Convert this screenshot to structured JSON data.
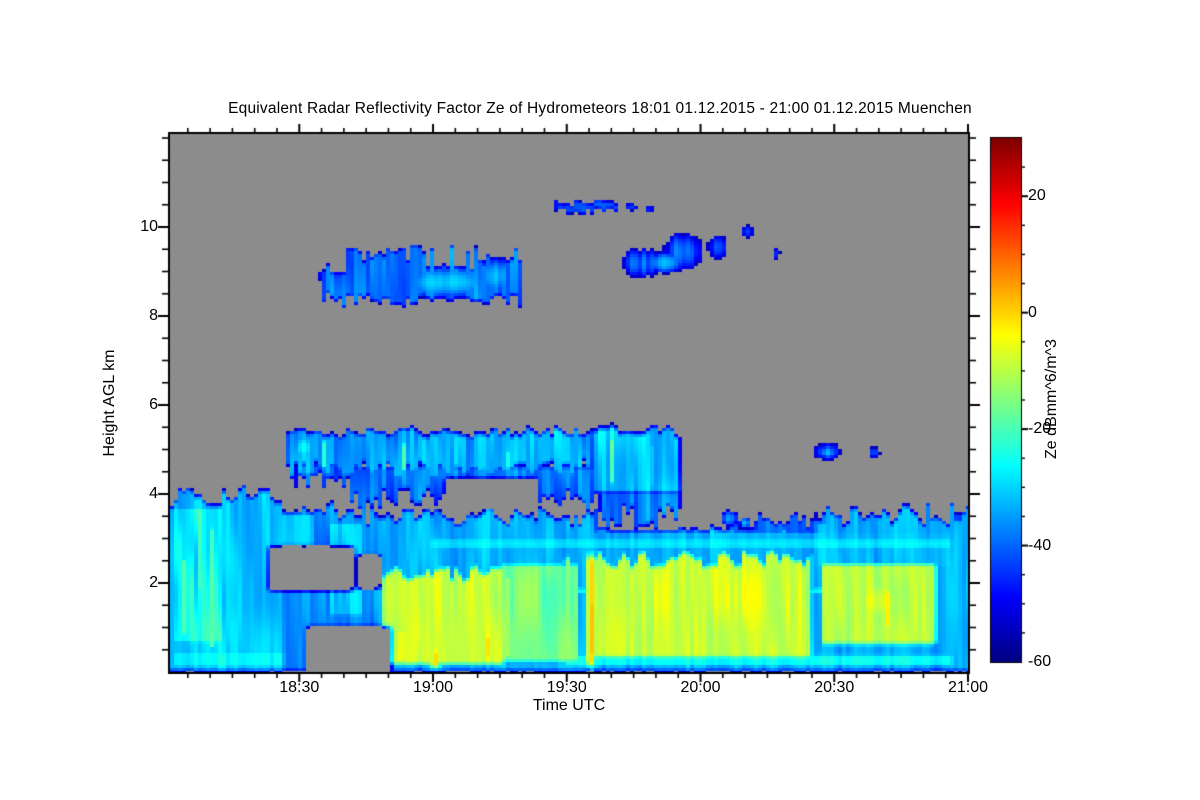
{
  "chart_data": {
    "type": "heatmap",
    "title": "Equivalent Radar Reflectivity Factor Ze of Hydrometeors   18:01 01.12.2015 - 21:00 01.12.2015 Muenchen",
    "xlabel": "Time UTC",
    "ylabel": "Height AGL km",
    "colorbar_label": "Ze dBmm^6/m^3",
    "time_start": "18:01",
    "time_end": "21:00",
    "date": "01.12.2015",
    "location": "Muenchen",
    "duration_min": 179,
    "x_ticks": [
      "18:30",
      "19:00",
      "19:30",
      "20:00",
      "20:30",
      "21:00"
    ],
    "x_minor_tick_min": 5,
    "y_range_km": [
      0,
      12.09
    ],
    "y_ticks": [
      2,
      4,
      6,
      8,
      10
    ],
    "y_minor_tick_km": 0.5,
    "colorbar_range": [
      -60,
      30
    ],
    "colorbar_ticks": [
      20,
      0,
      -20,
      -40,
      -60
    ],
    "colorbar_minor_tick": 5,
    "colormap": "jet",
    "no_data_color": "#8c8c8c",
    "value_units": "dBmm^6/m^3",
    "features": {
      "precip_envelope": [
        {
          "k": "b",
          "t": [
            -2,
            25.5
          ],
          "h": [
            0,
            3.95
          ],
          "v": -31,
          "a": 7,
          "ft": 0.3
        },
        {
          "k": "b",
          "t": [
            24,
            47
          ],
          "h": [
            0,
            3.6
          ],
          "v": -37,
          "a": 7,
          "ft": 0.35
        },
        {
          "k": "b",
          "t": [
            46,
            96
          ],
          "h": [
            0,
            3.55
          ],
          "v": -33,
          "a": 6,
          "ft": 0.3
        },
        {
          "k": "b",
          "t": [
            95,
            146
          ],
          "h": [
            0,
            3.1
          ],
          "v": -33,
          "a": 6,
          "ft": 0.3
        },
        {
          "k": "b",
          "t": [
            145,
            181
          ],
          "h": [
            0,
            3.55
          ],
          "v": -34,
          "a": 6,
          "ft": 0.3
        }
      ],
      "precip_detail": [
        {
          "k": "b",
          "t": [
            0.5,
            12
          ],
          "h": [
            0.6,
            3.75
          ],
          "v": -25,
          "a": 9
        },
        {
          "k": "s",
          "t": 3,
          "w": 1.2,
          "h": [
            0.8,
            2.6
          ],
          "v": -17,
          "a": 4
        },
        {
          "k": "s",
          "t": 6.5,
          "w": 1.0,
          "h": [
            1.8,
            3.7
          ],
          "v": -18,
          "a": 4
        },
        {
          "k": "s",
          "t": 9.5,
          "w": 0.9,
          "h": [
            0.5,
            3.3
          ],
          "v": -19,
          "a": 4
        },
        {
          "k": "b",
          "t": [
            0,
            26
          ],
          "h": [
            0.05,
            0.5
          ],
          "v": -27,
          "a": 5
        },
        {
          "k": "b",
          "t": [
            19,
            26
          ],
          "h": [
            0.8,
            3.0
          ],
          "v": -43,
          "a": 5
        },
        {
          "k": "b",
          "t": [
            23,
            33
          ],
          "h": [
            2.8,
            3.6
          ],
          "v": -31,
          "a": 6
        },
        {
          "k": "b",
          "t": [
            35,
            44
          ],
          "h": [
            1.2,
            3.4
          ],
          "v": -31,
          "a": 8
        },
        {
          "k": "b",
          "t": [
            43.5,
            47.5
          ],
          "h": [
            0,
            2.7
          ],
          "v": -46,
          "a": 5
        },
        {
          "k": "b",
          "t": [
            47.5,
            75
          ],
          "h": [
            0.15,
            2.25
          ],
          "v": -8,
          "a": 5,
          "ft": 0.2
        },
        {
          "k": "s",
          "t": 52,
          "w": 1.6,
          "h": [
            0.2,
            1.0
          ],
          "v": 0,
          "a": 3
        },
        {
          "k": "s",
          "t": 59.5,
          "w": 2.0,
          "h": [
            0.1,
            0.55
          ],
          "v": -1,
          "a": 3
        },
        {
          "k": "s",
          "t": 71.5,
          "w": 1.4,
          "h": [
            0.25,
            0.9
          ],
          "v": -2,
          "a": 3
        },
        {
          "k": "b",
          "t": [
            56,
            72
          ],
          "h": [
            2.15,
            2.65
          ],
          "v": -44,
          "a": 4
        },
        {
          "k": "b",
          "t": [
            74,
            92
          ],
          "h": [
            0.2,
            2.45
          ],
          "v": -16,
          "a": 7
        },
        {
          "k": "s",
          "t": 76,
          "w": 0.8,
          "h": [
            0.3,
            2.2
          ],
          "v": -8,
          "a": 3
        },
        {
          "k": "s",
          "t": 84.5,
          "w": 0.7,
          "h": [
            0.4,
            2.3
          ],
          "v": -9,
          "a": 3
        },
        {
          "k": "s",
          "t": 89,
          "w": 0.9,
          "h": [
            0.4,
            2.6
          ],
          "v": -7,
          "a": 3
        },
        {
          "k": "s",
          "t": 94.3,
          "w": 1.05,
          "h": [
            0.15,
            2.6
          ],
          "v": 6,
          "a": 3
        },
        {
          "k": "s",
          "t": 94.3,
          "w": 0.75,
          "h": [
            0.35,
            1.6
          ],
          "v": 14,
          "a": 2
        },
        {
          "k": "b",
          "t": [
            95,
            144
          ],
          "h": [
            0.3,
            2.55
          ],
          "v": -8,
          "a": 6,
          "ft": 0.25
        },
        {
          "k": "s",
          "t": 103.5,
          "w": 0.9,
          "h": [
            0.3,
            2.3
          ],
          "v": -5,
          "a": 3
        },
        {
          "k": "s",
          "t": 112,
          "w": 0.9,
          "h": [
            0.4,
            2.5
          ],
          "v": -5,
          "a": 3
        },
        {
          "k": "s",
          "t": 130.8,
          "w": 0.9,
          "h": [
            0.9,
            2.3
          ],
          "v": -1,
          "a": 3
        },
        {
          "k": "s",
          "t": 130.8,
          "w": 1.3,
          "h": [
            0.4,
            2.65
          ],
          "v": -6,
          "a": 3
        },
        {
          "k": "b",
          "t": [
            142,
            150.5
          ],
          "h": [
            0.55,
            1.4
          ],
          "v": -47,
          "a": 5
        },
        {
          "k": "b",
          "t": [
            146,
            172
          ],
          "h": [
            0.6,
            2.45
          ],
          "v": -10,
          "a": 5
        },
        {
          "k": "o",
          "t": 159,
          "hc": 1.6,
          "rt": 9,
          "rh": 0.75,
          "v": -6,
          "a": 4
        },
        {
          "k": "s",
          "t": 161,
          "w": 1.4,
          "h": [
            1.0,
            1.9
          ],
          "v": -3,
          "a": 3
        },
        {
          "k": "b",
          "t": [
            174.5,
            181
          ],
          "h": [
            0,
            3.6
          ],
          "v": -45,
          "a": 8
        },
        {
          "k": "b",
          "t": [
            46,
            176
          ],
          "h": [
            2.3,
            3.2
          ],
          "v": -33,
          "a": 6
        },
        {
          "k": "b",
          "t": [
            58,
            176
          ],
          "h": [
            2.72,
            3.05
          ],
          "v": -28,
          "a": 4
        },
        {
          "k": "b",
          "t": [
            88,
            176
          ],
          "h": [
            0.08,
            0.45
          ],
          "v": -26,
          "a": 4
        },
        {
          "k": "b",
          "t": [
            88,
            172
          ],
          "h": [
            1.76,
            1.9
          ],
          "v": -16,
          "a": 3
        },
        {
          "k": "o",
          "t": 125.5,
          "hc": 3.45,
          "rt": 2.5,
          "rh": 0.22,
          "v": -38,
          "a": 5
        },
        {
          "k": "o",
          "t": 129,
          "hc": 3.35,
          "rt": 1.5,
          "rh": 0.15,
          "v": -33,
          "a": 4
        },
        {
          "k": "b",
          "t": [
            131,
            150
          ],
          "h": [
            2.95,
            3.45
          ],
          "v": -40,
          "a": 8,
          "ft": 0.25
        },
        {
          "k": "b",
          "t": [
            113,
            131
          ],
          "h": [
            2.85,
            3.2
          ],
          "v": -41,
          "a": 7,
          "ft": 0.25
        }
      ],
      "midlevel_band": [
        {
          "k": "b",
          "t": [
            26,
            95
          ],
          "h": [
            4.55,
            5.42
          ],
          "v": -34,
          "a": 9,
          "ft": 0.12,
          "fb": 0.3
        },
        {
          "k": "s",
          "t": 34.5,
          "w": 1.5,
          "h": [
            4.55,
            5.25
          ],
          "v": -21,
          "a": 4
        },
        {
          "k": "s",
          "t": 52.5,
          "w": 1.2,
          "h": [
            4.5,
            5.2
          ],
          "v": -22,
          "a": 4
        },
        {
          "k": "s",
          "t": 76,
          "w": 1.0,
          "h": [
            4.55,
            5.05
          ],
          "v": -24,
          "a": 4
        },
        {
          "k": "o",
          "t": 30,
          "hc": 5.05,
          "rt": 3,
          "rh": 0.35,
          "v": -27,
          "a": 5
        },
        {
          "k": "b",
          "t": [
            95,
            114.5
          ],
          "h": [
            4.0,
            5.45
          ],
          "v": -30,
          "a": 8,
          "ft": 0.15
        },
        {
          "k": "s",
          "t": 99,
          "w": 1.6,
          "h": [
            4.2,
            5.3
          ],
          "v": -19,
          "a": 4
        },
        {
          "k": "s",
          "t": 108.5,
          "w": 1.2,
          "h": [
            4.1,
            5.2
          ],
          "v": -23,
          "a": 4
        },
        {
          "k": "b",
          "t": [
            40,
            96
          ],
          "h": [
            3.9,
            4.65
          ],
          "v": -40,
          "a": 11,
          "fb": 0.35
        },
        {
          "k": "b",
          "t": [
            96,
            114.5
          ],
          "h": [
            3.45,
            4.1
          ],
          "v": -37,
          "a": 9,
          "fb": 0.3
        },
        {
          "k": "b",
          "t": [
            28,
            40
          ],
          "h": [
            4.2,
            4.7
          ],
          "v": -41,
          "a": 9,
          "fb": 0.3
        },
        {
          "k": "o",
          "t": 147.5,
          "hc": 4.95,
          "rt": 4,
          "rh": 0.26,
          "v": -38,
          "a": 6
        },
        {
          "k": "o",
          "t": 147.5,
          "hc": 4.93,
          "rt": 2.2,
          "rh": 0.15,
          "v": -32,
          "a": 3
        },
        {
          "k": "o",
          "t": 158,
          "hc": 4.93,
          "rt": 2.0,
          "rh": 0.17,
          "v": -42,
          "a": 5
        }
      ],
      "high_clouds": [
        {
          "k": "b",
          "t": [
            34,
            79
          ],
          "h": [
            8.35,
            9.25
          ],
          "v": -39,
          "a": 8,
          "ft": 0.42,
          "fb": 0.25
        },
        {
          "k": "o",
          "t": 62,
          "hc": 8.75,
          "rt": 12,
          "rh": 0.42,
          "v": -30,
          "a": 5
        },
        {
          "k": "o",
          "t": 73,
          "hc": 8.9,
          "rt": 5,
          "rh": 0.5,
          "v": -32,
          "a": 5
        },
        {
          "k": "b",
          "t": [
            33,
            40
          ],
          "h": [
            8.75,
            9.05
          ],
          "v": -45,
          "a": 6
        },
        {
          "k": "b",
          "t": [
            86,
            101
          ],
          "h": [
            10.32,
            10.6
          ],
          "v": -41,
          "a": 6,
          "ft": 0.1,
          "fb": 0.1
        },
        {
          "k": "o",
          "t": 103.5,
          "hc": 10.45,
          "rt": 2.2,
          "rh": 0.13,
          "v": -43,
          "a": 4
        },
        {
          "k": "o",
          "t": 107.5,
          "hc": 10.4,
          "rt": 1.5,
          "rh": 0.12,
          "v": -45,
          "a": 4
        },
        {
          "k": "o",
          "t": 106,
          "hc": 9.2,
          "rt": 6,
          "rh": 0.42,
          "v": -37,
          "a": 7
        },
        {
          "k": "o",
          "t": 115,
          "hc": 9.45,
          "rt": 6,
          "rh": 0.55,
          "v": -38,
          "a": 7
        },
        {
          "k": "o",
          "t": 111,
          "hc": 9.2,
          "rt": 4,
          "rh": 0.28,
          "v": -30,
          "a": 4
        },
        {
          "k": "o",
          "t": 123,
          "hc": 9.55,
          "rt": 3.5,
          "rh": 0.38,
          "v": -42,
          "a": 6
        },
        {
          "k": "o",
          "t": 129.5,
          "hc": 9.9,
          "rt": 2.2,
          "rh": 0.2,
          "v": -43,
          "a": 5
        },
        {
          "k": "o",
          "t": 136,
          "hc": 9.4,
          "rt": 1.5,
          "rh": 0.2,
          "v": -45,
          "a": 4
        }
      ],
      "clear_holes": [
        {
          "t": [
            22.5,
            41
          ],
          "h": [
            1.85,
            2.8
          ]
        },
        {
          "t": [
            31,
            49.5
          ],
          "h": [
            0.05,
            1.0
          ]
        },
        {
          "t": [
            42.5,
            46.5
          ],
          "h": [
            0,
            0.7
          ]
        },
        {
          "t": [
            42,
            47
          ],
          "h": [
            1.9,
            2.6
          ]
        },
        {
          "t": [
            62,
            82
          ],
          "h": [
            3.72,
            4.32
          ]
        }
      ]
    }
  }
}
